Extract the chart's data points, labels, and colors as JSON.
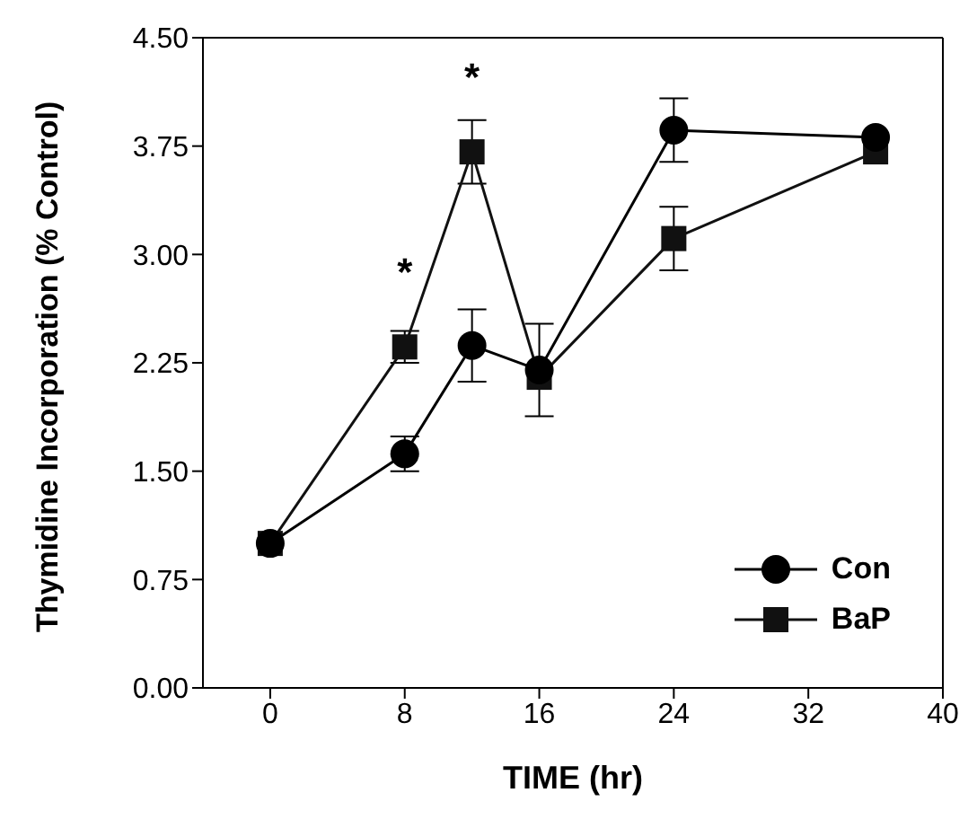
{
  "chart_data": {
    "type": "line",
    "xlabel": "TIME (hr)",
    "ylabel": "Thymidine Incorporation (% Control)",
    "x": [
      0,
      8,
      12,
      16,
      24,
      36
    ],
    "series": [
      {
        "name": "Con",
        "color": "#000000",
        "marker": "circle",
        "values": [
          1.0,
          1.62,
          2.37,
          2.2,
          3.86,
          3.81
        ],
        "errors": [
          null,
          0.12,
          0.25,
          0.32,
          0.22,
          null
        ]
      },
      {
        "name": "BaP",
        "color": "#111111",
        "marker": "square",
        "values": [
          1.0,
          2.36,
          3.71,
          2.15,
          3.11,
          3.71
        ],
        "errors": [
          null,
          0.11,
          0.22,
          null,
          0.22,
          null
        ]
      }
    ],
    "xlim": [
      -4,
      40
    ],
    "xticks": [
      0,
      8,
      16,
      24,
      32,
      40
    ],
    "ylim": [
      0,
      4.5
    ],
    "yticks": [
      {
        "value": 0,
        "label": "0.00"
      },
      {
        "value": 0.75,
        "label": "0.75"
      },
      {
        "value": 1.5,
        "label": "1.50"
      },
      {
        "value": 2.25,
        "label": "2.25"
      },
      {
        "value": 3,
        "label": "3.00"
      },
      {
        "value": 3.75,
        "label": "3.75"
      },
      {
        "value": 4.5,
        "label": "4.50"
      }
    ],
    "annotations": [
      {
        "text": "*",
        "x": 8,
        "y": 2.36
      },
      {
        "text": "*",
        "x": 12,
        "y": 3.71
      }
    ],
    "legend": "bottom right",
    "grid": false,
    "line_style": "solid"
  }
}
